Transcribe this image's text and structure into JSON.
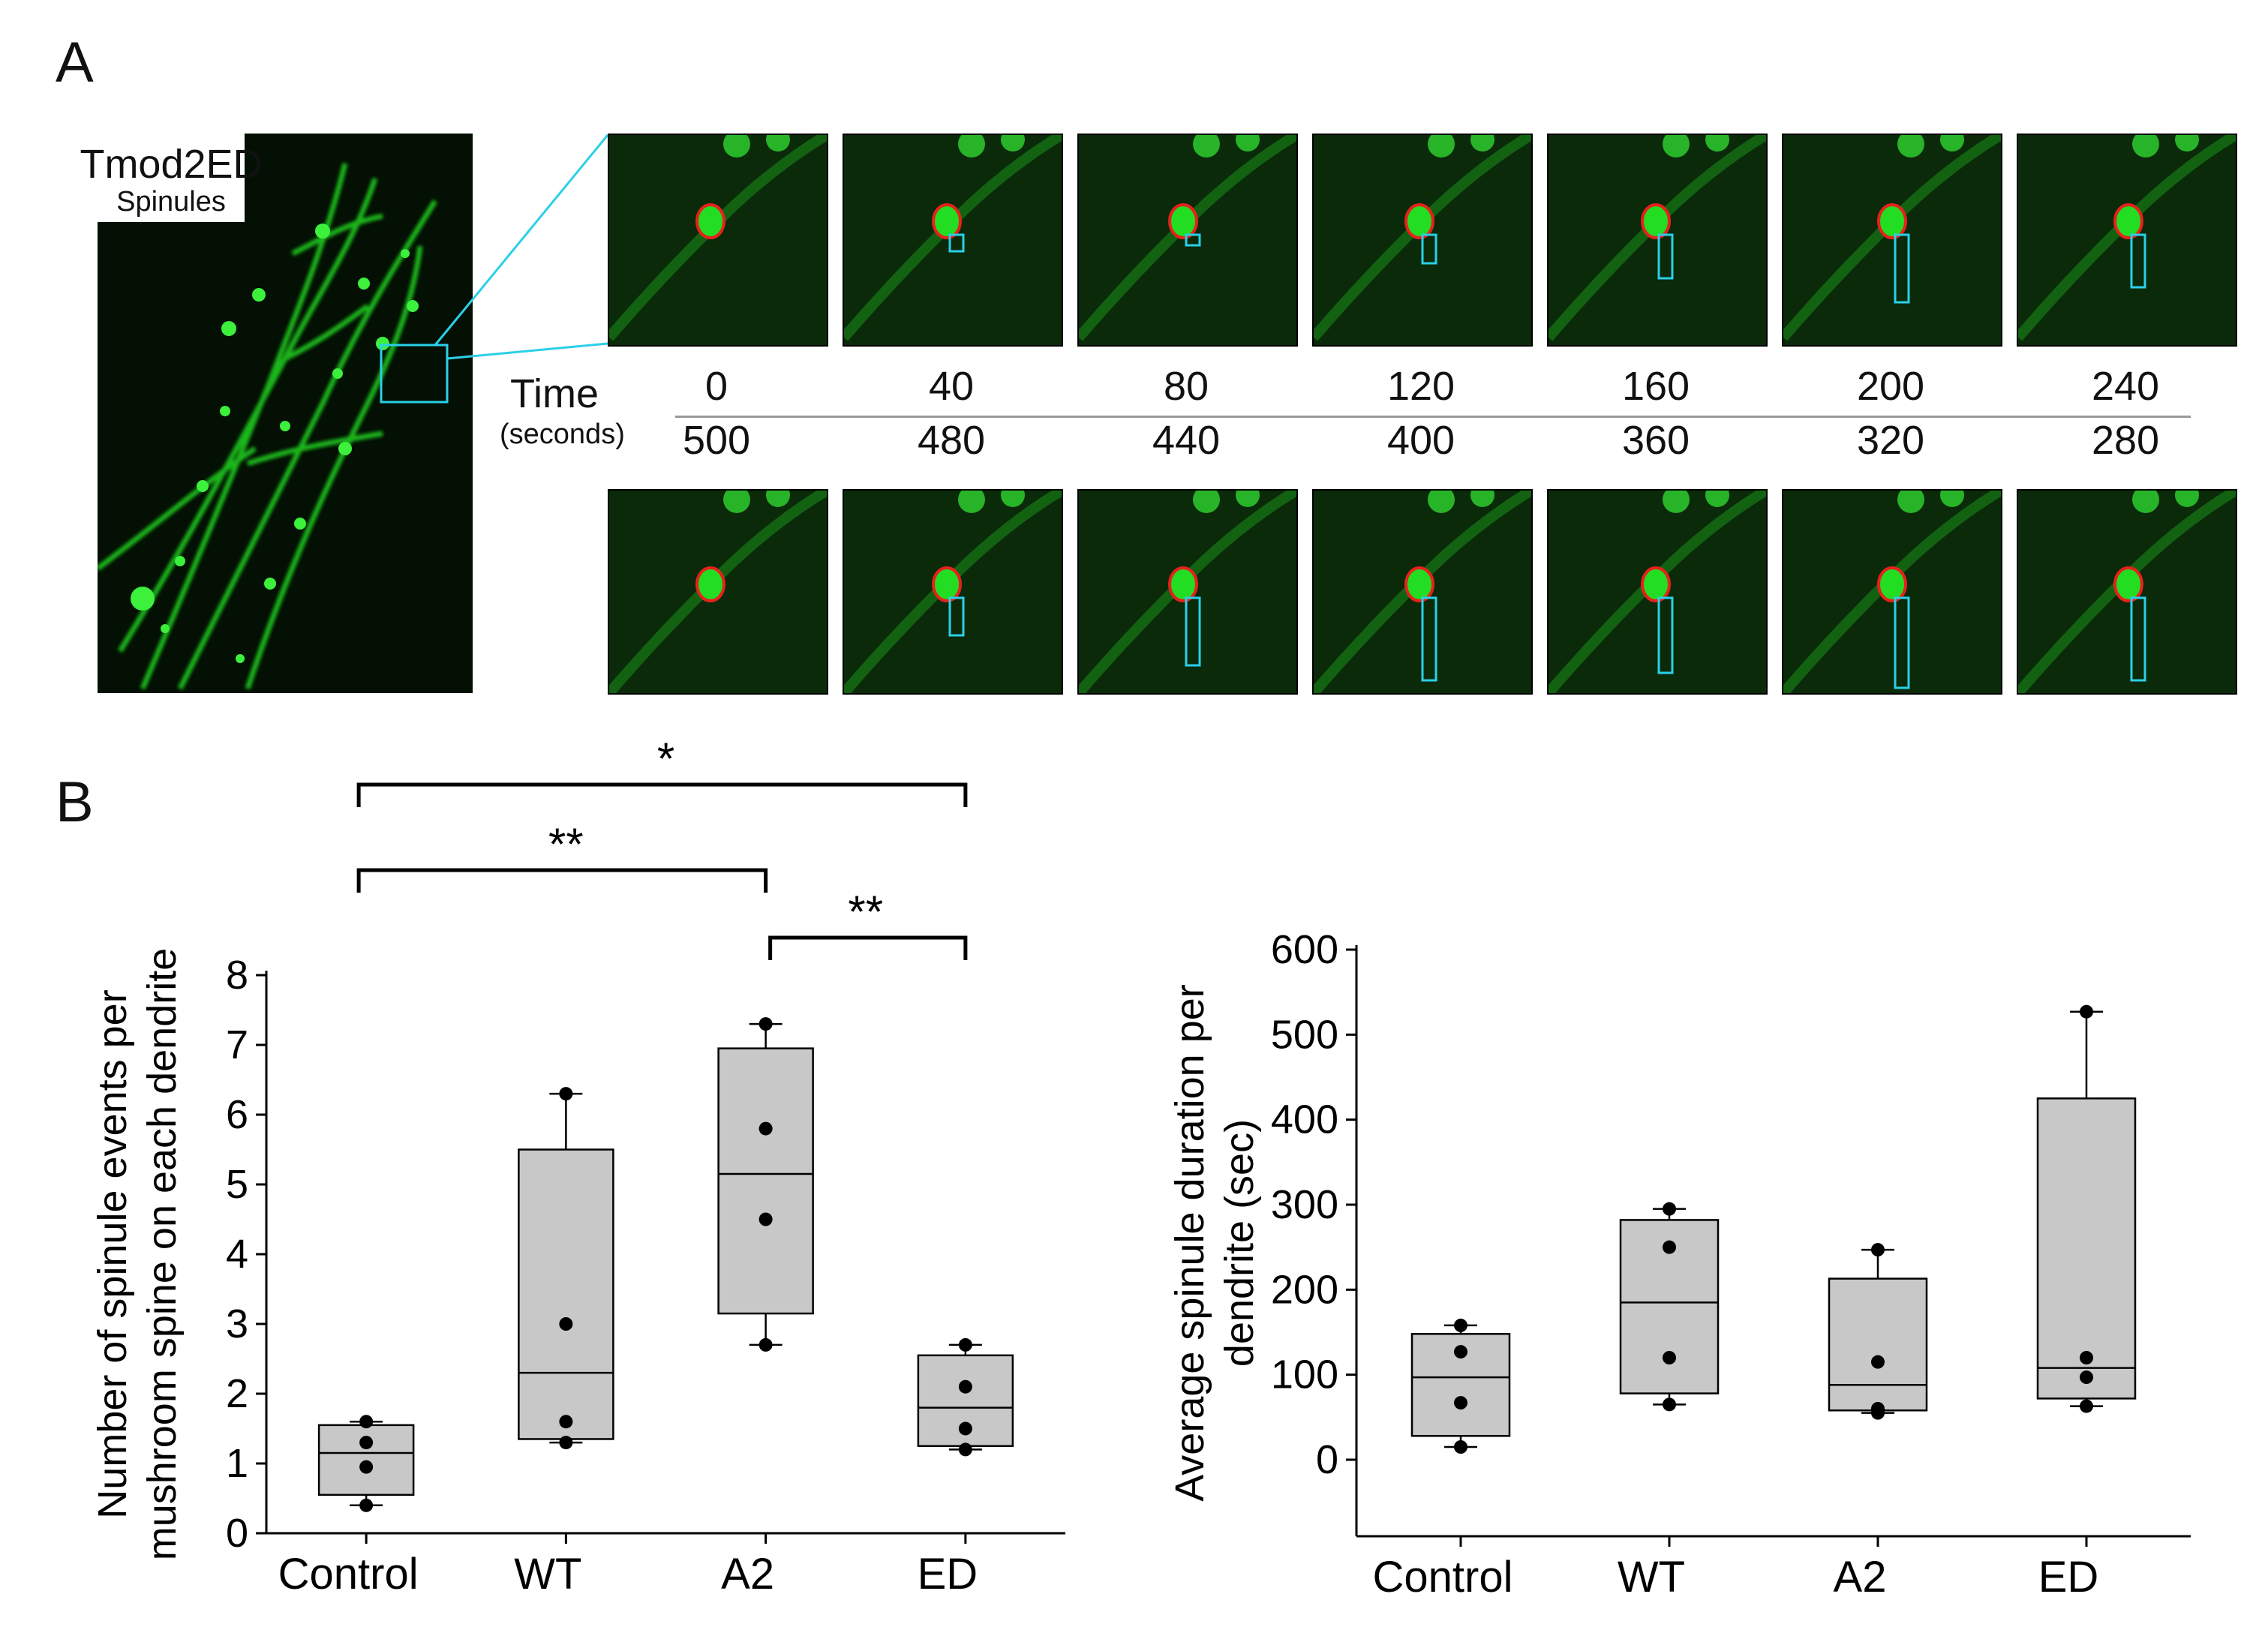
{
  "panels": {
    "a_label": "A",
    "b_label": "B"
  },
  "micrograph": {
    "title": "Tmod2ED",
    "subtitle": "Spinules"
  },
  "time_axis": {
    "label": "Time",
    "unit": "(seconds)",
    "top": [
      "0",
      "40",
      "80",
      "120",
      "160",
      "200",
      "240"
    ],
    "bottom": [
      "500",
      "480",
      "440",
      "400",
      "360",
      "320",
      "280"
    ]
  },
  "colors": {
    "spine_outline": "#e8201c",
    "spinule_outline": "#2ad0e8",
    "box_fill": "#c8c8c8",
    "signal": "#22dd22"
  },
  "chart_data": [
    {
      "type": "box",
      "ylabel_lines": [
        "Number of spinule events per",
        "mushroom spine on each dendrite"
      ],
      "categories": [
        "Control",
        "WT",
        "A2",
        "ED"
      ],
      "ylim": [
        0,
        8
      ],
      "yticks": [
        "0",
        "1",
        "2",
        "3",
        "4",
        "5",
        "6",
        "7",
        "8"
      ],
      "boxes": [
        {
          "q1": 0.55,
          "median": 1.15,
          "q3": 1.55,
          "min": 0.4,
          "max": 1.6,
          "points": [
            0.4,
            0.95,
            1.3,
            1.6
          ]
        },
        {
          "q1": 1.35,
          "median": 2.3,
          "q3": 5.5,
          "min": 1.3,
          "max": 6.3,
          "points": [
            1.3,
            1.6,
            3.0,
            6.3
          ]
        },
        {
          "q1": 3.15,
          "median": 5.15,
          "q3": 6.95,
          "min": 2.7,
          "max": 7.3,
          "points": [
            2.7,
            4.5,
            5.8,
            7.3
          ]
        },
        {
          "q1": 1.25,
          "median": 1.8,
          "q3": 2.55,
          "min": 1.2,
          "max": 2.7,
          "points": [
            1.2,
            1.5,
            2.1,
            2.7
          ]
        }
      ],
      "significance": [
        {
          "from": "Control",
          "to": "ED",
          "label": "*"
        },
        {
          "from": "Control",
          "to": "A2",
          "label": "**"
        },
        {
          "from": "A2",
          "to": "ED",
          "label": "**"
        }
      ]
    },
    {
      "type": "box",
      "ylabel_lines": [
        "Average spinule duration per",
        "dendrite (sec)"
      ],
      "categories": [
        "Control",
        "WT",
        "A2",
        "ED"
      ],
      "ylim": [
        -90,
        600
      ],
      "yticks": [
        "0",
        "100",
        "200",
        "300",
        "400",
        "500",
        "600"
      ],
      "boxes": [
        {
          "q1": 28,
          "median": 97,
          "q3": 148,
          "min": 15,
          "max": 158,
          "points": [
            15,
            67,
            127,
            158
          ]
        },
        {
          "q1": 78,
          "median": 185,
          "q3": 282,
          "min": 65,
          "max": 295,
          "points": [
            65,
            120,
            250,
            295
          ]
        },
        {
          "q1": 58,
          "median": 88,
          "q3": 213,
          "min": 55,
          "max": 247,
          "points": [
            55,
            60,
            115,
            247
          ]
        },
        {
          "q1": 72,
          "median": 108,
          "q3": 425,
          "min": 63,
          "max": 527,
          "points": [
            63,
            97,
            120,
            527
          ]
        }
      ]
    }
  ]
}
